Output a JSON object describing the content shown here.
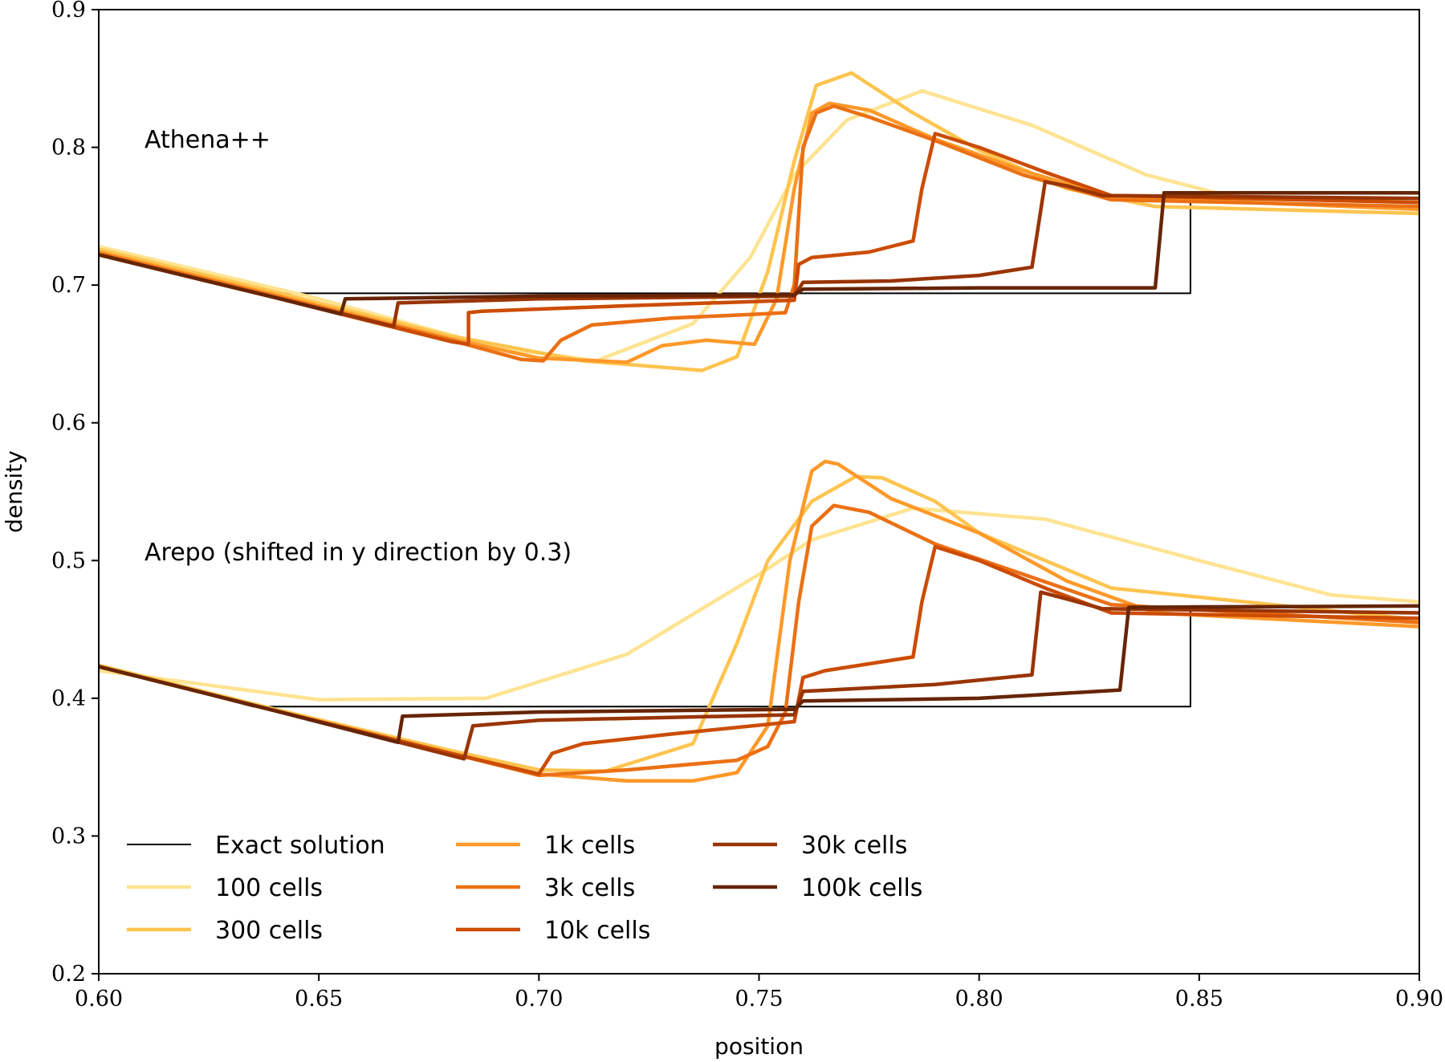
{
  "chart_data": {
    "type": "line",
    "xlabel": "position",
    "ylabel": "density",
    "xlim": [
      0.6,
      0.9
    ],
    "ylim": [
      0.2,
      0.9
    ],
    "xticks": [
      "0.60",
      "0.65",
      "0.70",
      "0.75",
      "0.80",
      "0.85",
      "0.90"
    ],
    "yticks": [
      "0.2",
      "0.3",
      "0.4",
      "0.5",
      "0.6",
      "0.7",
      "0.8",
      "0.9"
    ],
    "grid": false,
    "legend_position": "bottom-left",
    "annotations": [
      {
        "text": "Athena++",
        "x": 0.61,
        "y": 0.8
      },
      {
        "text": "Arepo (shifted in y direction by 0.3)",
        "x": 0.61,
        "y": 0.5
      }
    ],
    "legend": [
      {
        "name": "Exact solution",
        "color": "#000000"
      },
      {
        "name": "100 cells",
        "color": "#fee391"
      },
      {
        "name": "300 cells",
        "color": "#fec44f"
      },
      {
        "name": "1k cells",
        "color": "#fe9929"
      },
      {
        "name": "3k cells",
        "color": "#ec7014"
      },
      {
        "name": "10k cells",
        "color": "#cc4c02"
      },
      {
        "name": "30k cells",
        "color": "#993404"
      },
      {
        "name": "100k cells",
        "color": "#662506"
      }
    ],
    "series": [
      {
        "name": "Exact solution",
        "group": "Athena++",
        "color": "#000000",
        "width": 2,
        "points": [
          [
            0.6,
            0.723
          ],
          [
            0.64,
            0.694
          ],
          [
            0.848,
            0.694
          ],
          [
            0.848,
            0.767
          ],
          [
            0.9,
            0.767
          ]
        ]
      },
      {
        "name": "100 cells",
        "group": "Athena++",
        "color": "#fee391",
        "width": 4.5,
        "points": [
          [
            0.6,
            0.728
          ],
          [
            0.65,
            0.69
          ],
          [
            0.69,
            0.655
          ],
          [
            0.713,
            0.645
          ],
          [
            0.735,
            0.672
          ],
          [
            0.748,
            0.72
          ],
          [
            0.758,
            0.78
          ],
          [
            0.77,
            0.82
          ],
          [
            0.787,
            0.841
          ],
          [
            0.812,
            0.816
          ],
          [
            0.838,
            0.78
          ],
          [
            0.86,
            0.762
          ],
          [
            0.9,
            0.762
          ]
        ]
      },
      {
        "name": "300 cells",
        "group": "Athena++",
        "color": "#fec44f",
        "width": 4.5,
        "points": [
          [
            0.6,
            0.726
          ],
          [
            0.64,
            0.695
          ],
          [
            0.68,
            0.663
          ],
          [
            0.71,
            0.645
          ],
          [
            0.737,
            0.638
          ],
          [
            0.745,
            0.648
          ],
          [
            0.752,
            0.71
          ],
          [
            0.758,
            0.79
          ],
          [
            0.763,
            0.845
          ],
          [
            0.771,
            0.854
          ],
          [
            0.785,
            0.825
          ],
          [
            0.8,
            0.798
          ],
          [
            0.82,
            0.77
          ],
          [
            0.84,
            0.757
          ],
          [
            0.9,
            0.752
          ]
        ]
      },
      {
        "name": "1k cells",
        "group": "Athena++",
        "color": "#fe9929",
        "width": 4.5,
        "points": [
          [
            0.6,
            0.724
          ],
          [
            0.64,
            0.693
          ],
          [
            0.68,
            0.661
          ],
          [
            0.7,
            0.647
          ],
          [
            0.72,
            0.644
          ],
          [
            0.728,
            0.656
          ],
          [
            0.738,
            0.66
          ],
          [
            0.749,
            0.657
          ],
          [
            0.754,
            0.69
          ],
          [
            0.758,
            0.77
          ],
          [
            0.762,
            0.825
          ],
          [
            0.766,
            0.832
          ],
          [
            0.775,
            0.827
          ],
          [
            0.79,
            0.806
          ],
          [
            0.81,
            0.783
          ],
          [
            0.83,
            0.764
          ],
          [
            0.9,
            0.755
          ]
        ]
      },
      {
        "name": "3k cells",
        "group": "Athena++",
        "color": "#ec7014",
        "width": 4.5,
        "points": [
          [
            0.6,
            0.723
          ],
          [
            0.64,
            0.692
          ],
          [
            0.68,
            0.66
          ],
          [
            0.696,
            0.646
          ],
          [
            0.701,
            0.645
          ],
          [
            0.705,
            0.66
          ],
          [
            0.712,
            0.671
          ],
          [
            0.73,
            0.676
          ],
          [
            0.75,
            0.679
          ],
          [
            0.756,
            0.68
          ],
          [
            0.758,
            0.7
          ],
          [
            0.76,
            0.8
          ],
          [
            0.763,
            0.825
          ],
          [
            0.767,
            0.83
          ],
          [
            0.775,
            0.822
          ],
          [
            0.79,
            0.805
          ],
          [
            0.81,
            0.78
          ],
          [
            0.83,
            0.762
          ],
          [
            0.9,
            0.757
          ]
        ]
      },
      {
        "name": "10k cells",
        "group": "Athena++",
        "color": "#cc4c02",
        "width": 4.5,
        "points": [
          [
            0.6,
            0.722
          ],
          [
            0.64,
            0.691
          ],
          [
            0.68,
            0.659
          ],
          [
            0.684,
            0.657
          ],
          [
            0.684,
            0.68
          ],
          [
            0.687,
            0.681
          ],
          [
            0.72,
            0.685
          ],
          [
            0.758,
            0.689
          ],
          [
            0.759,
            0.715
          ],
          [
            0.762,
            0.72
          ],
          [
            0.775,
            0.724
          ],
          [
            0.785,
            0.732
          ],
          [
            0.787,
            0.77
          ],
          [
            0.79,
            0.81
          ],
          [
            0.8,
            0.8
          ],
          [
            0.815,
            0.782
          ],
          [
            0.83,
            0.765
          ],
          [
            0.9,
            0.76
          ]
        ]
      },
      {
        "name": "30k cells",
        "group": "Athena++",
        "color": "#993404",
        "width": 4.5,
        "points": [
          [
            0.6,
            0.722
          ],
          [
            0.64,
            0.691
          ],
          [
            0.667,
            0.67
          ],
          [
            0.668,
            0.687
          ],
          [
            0.7,
            0.69
          ],
          [
            0.758,
            0.692
          ],
          [
            0.76,
            0.702
          ],
          [
            0.78,
            0.703
          ],
          [
            0.8,
            0.707
          ],
          [
            0.812,
            0.713
          ],
          [
            0.815,
            0.775
          ],
          [
            0.82,
            0.772
          ],
          [
            0.828,
            0.765
          ],
          [
            0.9,
            0.763
          ]
        ]
      },
      {
        "name": "100k cells",
        "group": "Athena++",
        "color": "#662506",
        "width": 4.5,
        "points": [
          [
            0.6,
            0.722
          ],
          [
            0.64,
            0.691
          ],
          [
            0.655,
            0.679
          ],
          [
            0.656,
            0.69
          ],
          [
            0.7,
            0.692
          ],
          [
            0.758,
            0.693
          ],
          [
            0.76,
            0.697
          ],
          [
            0.8,
            0.698
          ],
          [
            0.84,
            0.698
          ],
          [
            0.842,
            0.767
          ],
          [
            0.9,
            0.767
          ]
        ]
      },
      {
        "name": "Exact solution",
        "group": "Arepo",
        "color": "#000000",
        "width": 2,
        "points": [
          [
            0.6,
            0.423
          ],
          [
            0.635,
            0.394
          ],
          [
            0.848,
            0.394
          ],
          [
            0.848,
            0.467
          ],
          [
            0.9,
            0.467
          ]
        ]
      },
      {
        "name": "100 cells",
        "group": "Arepo",
        "color": "#fee391",
        "width": 4.5,
        "points": [
          [
            0.6,
            0.42
          ],
          [
            0.65,
            0.399
          ],
          [
            0.688,
            0.4
          ],
          [
            0.72,
            0.432
          ],
          [
            0.75,
            0.49
          ],
          [
            0.762,
            0.515
          ],
          [
            0.785,
            0.538
          ],
          [
            0.815,
            0.53
          ],
          [
            0.85,
            0.5
          ],
          [
            0.88,
            0.475
          ],
          [
            0.9,
            0.47
          ]
        ]
      },
      {
        "name": "300 cells",
        "group": "Arepo",
        "color": "#fec44f",
        "width": 4.5,
        "points": [
          [
            0.6,
            0.424
          ],
          [
            0.64,
            0.392
          ],
          [
            0.68,
            0.362
          ],
          [
            0.7,
            0.348
          ],
          [
            0.715,
            0.347
          ],
          [
            0.735,
            0.367
          ],
          [
            0.745,
            0.44
          ],
          [
            0.752,
            0.5
          ],
          [
            0.762,
            0.543
          ],
          [
            0.772,
            0.561
          ],
          [
            0.778,
            0.56
          ],
          [
            0.79,
            0.543
          ],
          [
            0.8,
            0.52
          ],
          [
            0.83,
            0.48
          ],
          [
            0.9,
            0.457
          ]
        ]
      },
      {
        "name": "1k cells",
        "group": "Arepo",
        "color": "#fe9929",
        "width": 4.5,
        "points": [
          [
            0.6,
            0.423
          ],
          [
            0.64,
            0.391
          ],
          [
            0.68,
            0.36
          ],
          [
            0.7,
            0.345
          ],
          [
            0.72,
            0.34
          ],
          [
            0.735,
            0.34
          ],
          [
            0.745,
            0.346
          ],
          [
            0.752,
            0.38
          ],
          [
            0.757,
            0.5
          ],
          [
            0.762,
            0.565
          ],
          [
            0.765,
            0.572
          ],
          [
            0.768,
            0.57
          ],
          [
            0.78,
            0.545
          ],
          [
            0.8,
            0.52
          ],
          [
            0.82,
            0.485
          ],
          [
            0.84,
            0.462
          ],
          [
            0.9,
            0.452
          ]
        ]
      },
      {
        "name": "3k cells",
        "group": "Arepo",
        "color": "#ec7014",
        "width": 4.5,
        "points": [
          [
            0.6,
            0.423
          ],
          [
            0.64,
            0.391
          ],
          [
            0.68,
            0.36
          ],
          [
            0.7,
            0.344
          ],
          [
            0.72,
            0.348
          ],
          [
            0.745,
            0.355
          ],
          [
            0.752,
            0.365
          ],
          [
            0.756,
            0.39
          ],
          [
            0.759,
            0.47
          ],
          [
            0.762,
            0.525
          ],
          [
            0.767,
            0.54
          ],
          [
            0.775,
            0.535
          ],
          [
            0.79,
            0.512
          ],
          [
            0.81,
            0.49
          ],
          [
            0.83,
            0.468
          ],
          [
            0.9,
            0.455
          ]
        ]
      },
      {
        "name": "10k cells",
        "group": "Arepo",
        "color": "#cc4c02",
        "width": 4.5,
        "points": [
          [
            0.6,
            0.423
          ],
          [
            0.64,
            0.391
          ],
          [
            0.68,
            0.36
          ],
          [
            0.7,
            0.345
          ],
          [
            0.703,
            0.36
          ],
          [
            0.71,
            0.367
          ],
          [
            0.73,
            0.374
          ],
          [
            0.758,
            0.383
          ],
          [
            0.76,
            0.415
          ],
          [
            0.765,
            0.42
          ],
          [
            0.785,
            0.43
          ],
          [
            0.787,
            0.47
          ],
          [
            0.79,
            0.51
          ],
          [
            0.8,
            0.5
          ],
          [
            0.815,
            0.48
          ],
          [
            0.83,
            0.462
          ],
          [
            0.9,
            0.458
          ]
        ]
      },
      {
        "name": "30k cells",
        "group": "Arepo",
        "color": "#993404",
        "width": 4.5,
        "points": [
          [
            0.6,
            0.423
          ],
          [
            0.64,
            0.391
          ],
          [
            0.683,
            0.356
          ],
          [
            0.685,
            0.38
          ],
          [
            0.7,
            0.384
          ],
          [
            0.758,
            0.388
          ],
          [
            0.76,
            0.405
          ],
          [
            0.79,
            0.41
          ],
          [
            0.812,
            0.417
          ],
          [
            0.814,
            0.477
          ],
          [
            0.82,
            0.472
          ],
          [
            0.828,
            0.465
          ],
          [
            0.9,
            0.462
          ]
        ]
      },
      {
        "name": "100k cells",
        "group": "Arepo",
        "color": "#662506",
        "width": 4.5,
        "points": [
          [
            0.6,
            0.423
          ],
          [
            0.64,
            0.391
          ],
          [
            0.668,
            0.368
          ],
          [
            0.669,
            0.387
          ],
          [
            0.7,
            0.39
          ],
          [
            0.758,
            0.392
          ],
          [
            0.76,
            0.398
          ],
          [
            0.8,
            0.4
          ],
          [
            0.832,
            0.406
          ],
          [
            0.834,
            0.466
          ],
          [
            0.9,
            0.467
          ]
        ]
      }
    ]
  }
}
